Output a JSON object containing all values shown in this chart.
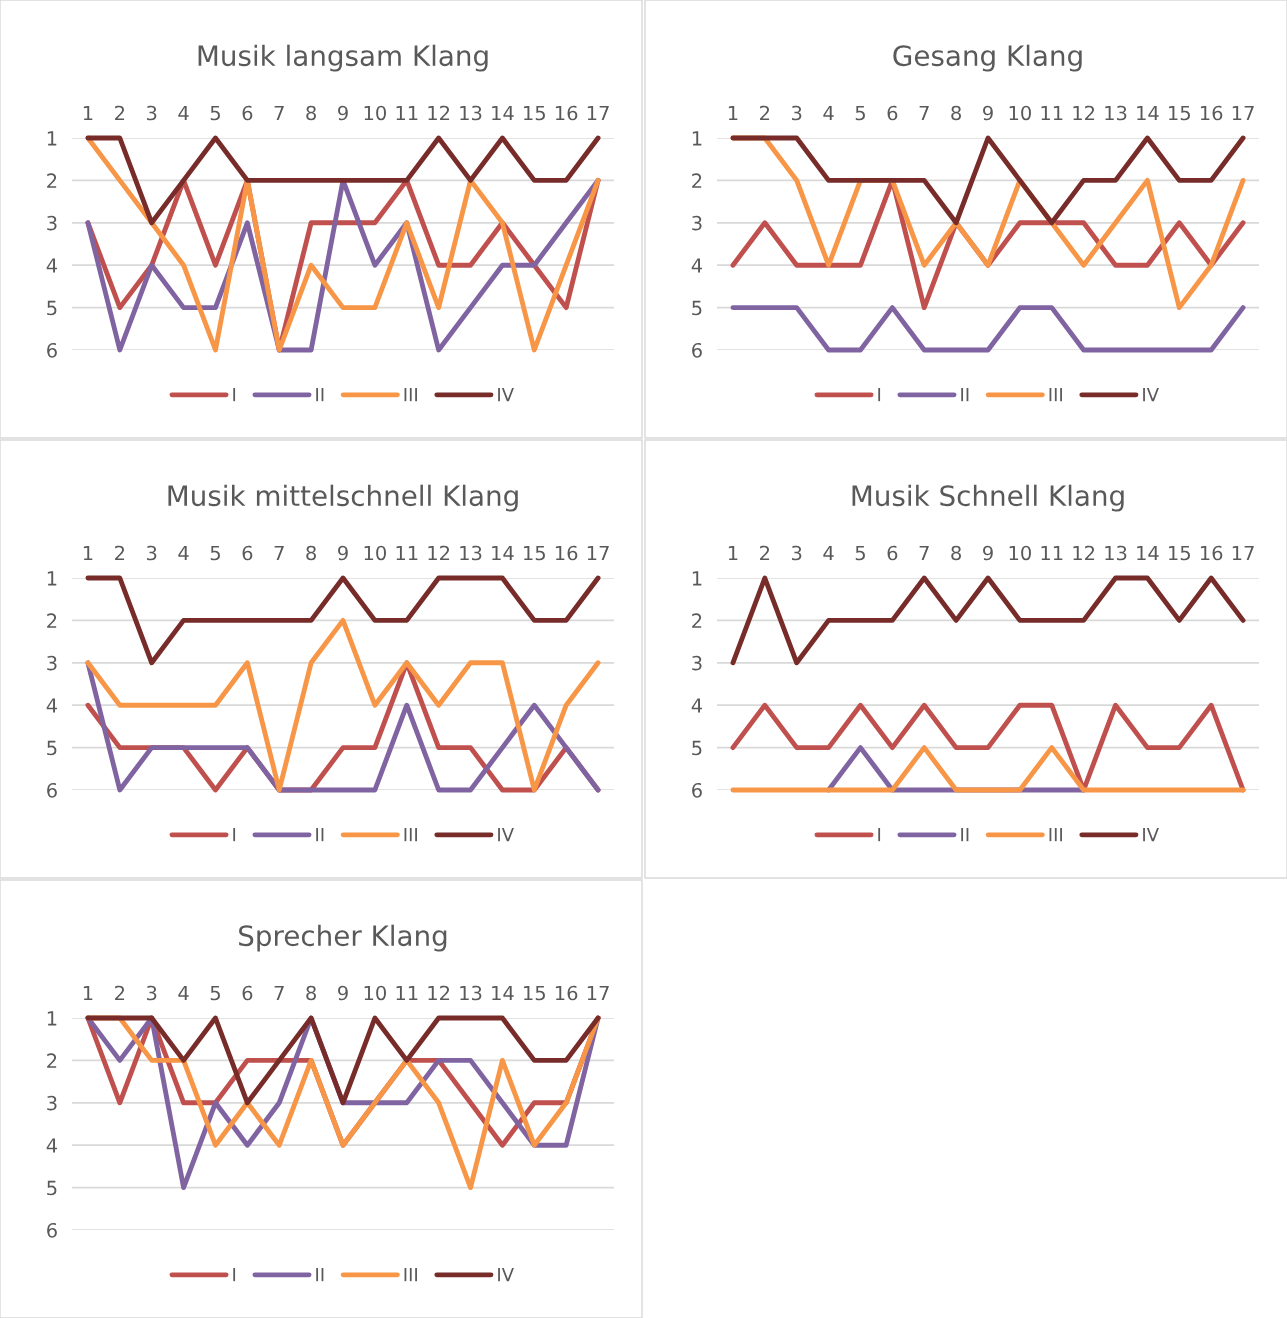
{
  "chart_data": [
    {
      "type": "line",
      "title": "Musik langsam Klang",
      "categories": [
        "1",
        "2",
        "3",
        "4",
        "5",
        "6",
        "7",
        "8",
        "9",
        "10",
        "11",
        "12",
        "13",
        "14",
        "15",
        "16",
        "17"
      ],
      "ylim": [
        6,
        1
      ],
      "yticks": [
        1,
        2,
        3,
        4,
        5,
        6
      ],
      "grid": "y",
      "legend": "bottom",
      "marker": "none",
      "line_style": "solid",
      "series": [
        {
          "name": "I",
          "color": "#c0504d",
          "values": [
            3,
            5,
            4,
            2,
            4,
            2,
            6,
            3,
            3,
            3,
            2,
            4,
            4,
            3,
            4,
            5,
            2
          ]
        },
        {
          "name": "II",
          "color": "#8064a2",
          "values": [
            3,
            6,
            4,
            5,
            5,
            3,
            6,
            6,
            2,
            4,
            3,
            6,
            5,
            4,
            4,
            3,
            2
          ]
        },
        {
          "name": "III",
          "color": "#f79646",
          "values": [
            1,
            2,
            3,
            4,
            6,
            2,
            6,
            4,
            5,
            5,
            3,
            5,
            2,
            3,
            6,
            4,
            2
          ]
        },
        {
          "name": "IV",
          "color": "#772c2a",
          "values": [
            1,
            1,
            3,
            2,
            1,
            2,
            2,
            2,
            2,
            2,
            2,
            1,
            2,
            1,
            2,
            2,
            1
          ]
        }
      ]
    },
    {
      "type": "line",
      "title": "Gesang Klang",
      "categories": [
        "1",
        "2",
        "3",
        "4",
        "5",
        "6",
        "7",
        "8",
        "9",
        "10",
        "11",
        "12",
        "13",
        "14",
        "15",
        "16",
        "17"
      ],
      "ylim": [
        6,
        1
      ],
      "yticks": [
        1,
        2,
        3,
        4,
        5,
        6
      ],
      "grid": "y",
      "legend": "bottom",
      "marker": "none",
      "line_style": "solid",
      "series": [
        {
          "name": "I",
          "color": "#c0504d",
          "values": [
            4,
            3,
            4,
            4,
            4,
            2,
            5,
            3,
            4,
            3,
            3,
            3,
            4,
            4,
            3,
            4,
            3
          ]
        },
        {
          "name": "II",
          "color": "#8064a2",
          "values": [
            5,
            5,
            5,
            6,
            6,
            5,
            6,
            6,
            6,
            5,
            5,
            6,
            6,
            6,
            6,
            6,
            5
          ]
        },
        {
          "name": "III",
          "color": "#f79646",
          "values": [
            1,
            1,
            2,
            4,
            2,
            2,
            4,
            3,
            4,
            2,
            3,
            4,
            3,
            2,
            5,
            4,
            2
          ]
        },
        {
          "name": "IV",
          "color": "#772c2a",
          "values": [
            1,
            1,
            1,
            2,
            2,
            2,
            2,
            3,
            1,
            2,
            3,
            2,
            2,
            1,
            2,
            2,
            1
          ]
        }
      ]
    },
    {
      "type": "line",
      "title": "Musik mittelschnell Klang",
      "categories": [
        "1",
        "2",
        "3",
        "4",
        "5",
        "6",
        "7",
        "8",
        "9",
        "10",
        "11",
        "12",
        "13",
        "14",
        "15",
        "16",
        "17"
      ],
      "ylim": [
        6,
        1
      ],
      "yticks": [
        1,
        2,
        3,
        4,
        5,
        6
      ],
      "grid": "y",
      "legend": "bottom",
      "marker": "none",
      "line_style": "solid",
      "series": [
        {
          "name": "I",
          "color": "#c0504d",
          "values": [
            4,
            5,
            5,
            5,
            6,
            5,
            6,
            6,
            5,
            5,
            3,
            5,
            5,
            6,
            6,
            5,
            6
          ]
        },
        {
          "name": "II",
          "color": "#8064a2",
          "values": [
            3,
            6,
            5,
            5,
            5,
            5,
            6,
            6,
            6,
            6,
            4,
            6,
            6,
            5,
            4,
            5,
            6
          ]
        },
        {
          "name": "III",
          "color": "#f79646",
          "values": [
            3,
            4,
            4,
            4,
            4,
            3,
            6,
            3,
            2,
            4,
            3,
            4,
            3,
            3,
            6,
            4,
            3
          ]
        },
        {
          "name": "IV",
          "color": "#772c2a",
          "values": [
            1,
            1,
            3,
            2,
            2,
            2,
            2,
            2,
            1,
            2,
            2,
            1,
            1,
            1,
            2,
            2,
            1
          ]
        }
      ]
    },
    {
      "type": "line",
      "title": "Musik Schnell Klang",
      "categories": [
        "1",
        "2",
        "3",
        "4",
        "5",
        "6",
        "7",
        "8",
        "9",
        "10",
        "11",
        "12",
        "13",
        "14",
        "15",
        "16",
        "17"
      ],
      "ylim": [
        6,
        1
      ],
      "yticks": [
        1,
        2,
        3,
        4,
        5,
        6
      ],
      "grid": "y",
      "legend": "bottom",
      "marker": "none",
      "line_style": "solid",
      "series": [
        {
          "name": "I",
          "color": "#c0504d",
          "values": [
            5,
            4,
            5,
            5,
            4,
            5,
            4,
            5,
            5,
            4,
            4,
            6,
            4,
            5,
            5,
            4,
            6
          ]
        },
        {
          "name": "II",
          "color": "#8064a2",
          "values": [
            null,
            null,
            null,
            6,
            5,
            6,
            6,
            6,
            null,
            6,
            6,
            6,
            null,
            null,
            null,
            null,
            null
          ]
        },
        {
          "name": "III",
          "color": "#f79646",
          "values": [
            6,
            6,
            6,
            6,
            6,
            6,
            5,
            6,
            6,
            6,
            5,
            6,
            6,
            6,
            6,
            6,
            6
          ]
        },
        {
          "name": "IV",
          "color": "#772c2a",
          "values": [
            3,
            1,
            3,
            2,
            2,
            2,
            1,
            2,
            1,
            2,
            2,
            2,
            1,
            1,
            2,
            1,
            2
          ]
        }
      ]
    },
    {
      "type": "line",
      "title": "Sprecher Klang",
      "categories": [
        "1",
        "2",
        "3",
        "4",
        "5",
        "6",
        "7",
        "8",
        "9",
        "10",
        "11",
        "12",
        "13",
        "14",
        "15",
        "16",
        "17"
      ],
      "ylim": [
        6,
        1
      ],
      "yticks": [
        1,
        2,
        3,
        4,
        5,
        6
      ],
      "grid": "y",
      "legend": "bottom",
      "marker": "none",
      "line_style": "solid",
      "series": [
        {
          "name": "I",
          "color": "#c0504d",
          "values": [
            1,
            3,
            1,
            3,
            3,
            2,
            2,
            2,
            4,
            3,
            2,
            2,
            3,
            4,
            3,
            3,
            1
          ]
        },
        {
          "name": "II",
          "color": "#8064a2",
          "values": [
            1,
            2,
            1,
            5,
            3,
            4,
            3,
            1,
            3,
            3,
            3,
            2,
            2,
            3,
            4,
            4,
            1
          ]
        },
        {
          "name": "III",
          "color": "#f79646",
          "values": [
            1,
            1,
            2,
            2,
            4,
            3,
            4,
            2,
            4,
            3,
            2,
            3,
            5,
            2,
            4,
            3,
            1
          ]
        },
        {
          "name": "IV",
          "color": "#772c2a",
          "values": [
            1,
            1,
            1,
            2,
            1,
            3,
            2,
            1,
            3,
            1,
            2,
            1,
            1,
            1,
            2,
            2,
            1
          ]
        }
      ]
    }
  ]
}
